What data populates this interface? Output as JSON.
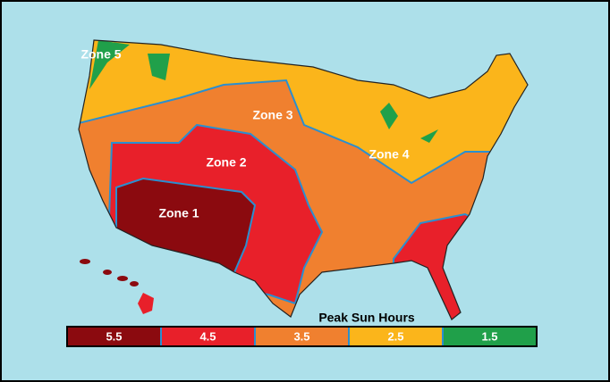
{
  "map": {
    "zones": [
      {
        "label": "Zone 1"
      },
      {
        "label": "Zone 2"
      },
      {
        "label": "Zone 3"
      },
      {
        "label": "Zone 4"
      },
      {
        "label": "Zone 5"
      }
    ],
    "legend": {
      "title": "Peak Sun Hours",
      "items": [
        {
          "value": 5.5,
          "color": "#8b0a0f"
        },
        {
          "value": 4.5,
          "color": "#e8202a"
        },
        {
          "value": 3.5,
          "color": "#f0802f"
        },
        {
          "value": 2.5,
          "color": "#fbb51b"
        },
        {
          "value": 1.5,
          "color": "#20a04a"
        }
      ]
    }
  }
}
